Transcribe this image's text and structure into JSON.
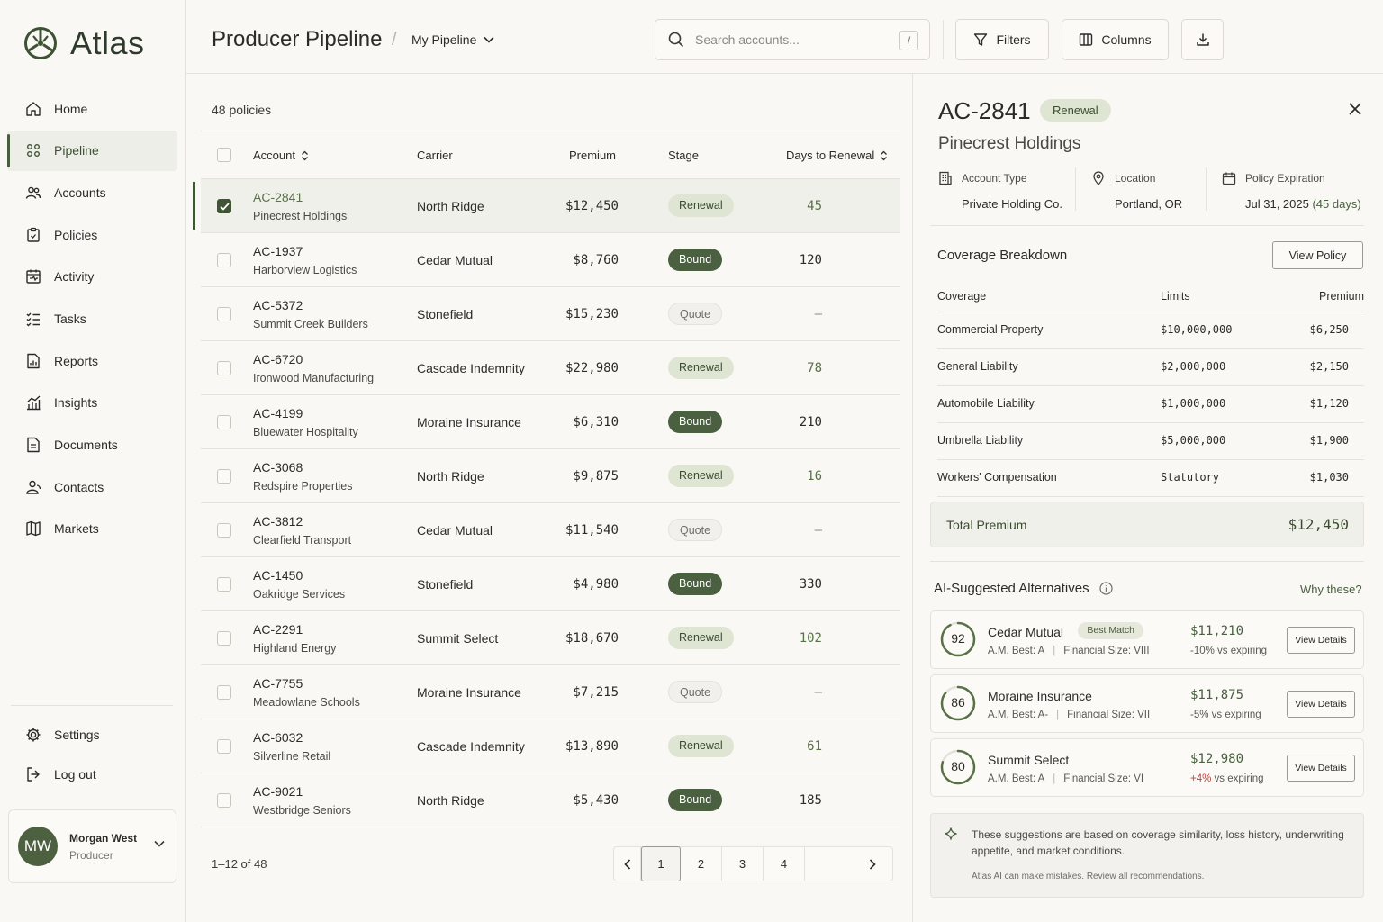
{
  "app": {
    "name": "Atlas"
  },
  "sidebar": {
    "items": [
      {
        "label": "Home",
        "icon": "home-icon"
      },
      {
        "label": "Pipeline",
        "icon": "pipeline-icon",
        "active": true
      },
      {
        "label": "Accounts",
        "icon": "accounts-icon"
      },
      {
        "label": "Policies",
        "icon": "policies-icon"
      },
      {
        "label": "Activity",
        "icon": "activity-icon"
      },
      {
        "label": "Tasks",
        "icon": "tasks-icon"
      },
      {
        "label": "Reports",
        "icon": "reports-icon"
      },
      {
        "label": "Insights",
        "icon": "insights-icon"
      },
      {
        "label": "Documents",
        "icon": "documents-icon"
      },
      {
        "label": "Contacts",
        "icon": "contacts-icon"
      },
      {
        "label": "Markets",
        "icon": "markets-icon"
      }
    ],
    "bottom": [
      {
        "label": "Settings",
        "icon": "gear-icon"
      },
      {
        "label": "Log out",
        "icon": "logout-icon"
      }
    ],
    "user": {
      "initials": "MW",
      "name": "Morgan West",
      "role": "Producer"
    }
  },
  "header": {
    "title": "Producer Pipeline",
    "separator": "/",
    "pipeline": "My Pipeline",
    "search_placeholder": "Search accounts...",
    "search_shortcut": "/",
    "filters": "Filters",
    "columns": "Columns"
  },
  "table": {
    "count": "48 policies",
    "columns": {
      "account": "Account",
      "carrier": "Carrier",
      "premium": "Premium",
      "stage": "Stage",
      "days": "Days to Renewal"
    },
    "rows": [
      {
        "id": "AC-2841",
        "name": "Pinecrest Holdings",
        "carrier": "North Ridge",
        "premium": "$12,450",
        "stage": "Renewal",
        "days": "45",
        "selected": true
      },
      {
        "id": "AC-1937",
        "name": "Harborview Logistics",
        "carrier": "Cedar Mutual",
        "premium": "$8,760",
        "stage": "Bound",
        "days": "120"
      },
      {
        "id": "AC-5372",
        "name": "Summit Creek Builders",
        "carrier": "Stonefield",
        "premium": "$15,230",
        "stage": "Quote",
        "days": "–"
      },
      {
        "id": "AC-6720",
        "name": "Ironwood Manufacturing",
        "carrier": "Cascade Indemnity",
        "premium": "$22,980",
        "stage": "Renewal",
        "days": "78"
      },
      {
        "id": "AC-4199",
        "name": "Bluewater Hospitality",
        "carrier": "Moraine Insurance",
        "premium": "$6,310",
        "stage": "Bound",
        "days": "210"
      },
      {
        "id": "AC-3068",
        "name": "Redspire Properties",
        "carrier": "North Ridge",
        "premium": "$9,875",
        "stage": "Renewal",
        "days": "16"
      },
      {
        "id": "AC-3812",
        "name": "Clearfield Transport",
        "carrier": "Cedar Mutual",
        "premium": "$11,540",
        "stage": "Quote",
        "days": "–"
      },
      {
        "id": "AC-1450",
        "name": "Oakridge Services",
        "carrier": "Stonefield",
        "premium": "$4,980",
        "stage": "Bound",
        "days": "330"
      },
      {
        "id": "AC-2291",
        "name": "Highland Energy",
        "carrier": "Summit Select",
        "premium": "$18,670",
        "stage": "Renewal",
        "days": "102"
      },
      {
        "id": "AC-7755",
        "name": "Meadowlane Schools",
        "carrier": "Moraine Insurance",
        "premium": "$7,215",
        "stage": "Quote",
        "days": "–"
      },
      {
        "id": "AC-6032",
        "name": "Silverline Retail",
        "carrier": "Cascade Indemnity",
        "premium": "$13,890",
        "stage": "Renewal",
        "days": "61"
      },
      {
        "id": "AC-9021",
        "name": "Westbridge Seniors",
        "carrier": "North Ridge",
        "premium": "$5,430",
        "stage": "Bound",
        "days": "185"
      }
    ],
    "pagination": {
      "summary": "1–12 of 48",
      "pages": [
        "1",
        "2",
        "3",
        "4"
      ],
      "current": "1"
    }
  },
  "detail": {
    "id": "AC-2841",
    "badge": "Renewal",
    "name": "Pinecrest Holdings",
    "meta": [
      {
        "label": "Account Type",
        "value": "Private Holding Co.",
        "icon": "building-icon"
      },
      {
        "label": "Location",
        "value": "Portland, OR",
        "icon": "location-pin-icon"
      },
      {
        "label": "Policy Expiration",
        "value": "Jul 31, 2025",
        "extra": "(45 days)",
        "icon": "calendar-icon"
      }
    ],
    "coverage": {
      "title": "Coverage Breakdown",
      "view_policy": "View Policy",
      "headers": {
        "coverage": "Coverage",
        "limits": "Limits",
        "premium": "Premium"
      },
      "rows": [
        {
          "coverage": "Commercial Property",
          "limits": "$10,000,000",
          "premium": "$6,250"
        },
        {
          "coverage": "General Liability",
          "limits": "$2,000,000",
          "premium": "$2,150"
        },
        {
          "coverage": "Automobile Liability",
          "limits": "$1,000,000",
          "premium": "$1,120"
        },
        {
          "coverage": "Umbrella Liability",
          "limits": "$5,000,000",
          "premium": "$1,900"
        },
        {
          "coverage": "Workers' Compensation",
          "limits": "Statutory",
          "premium": "$1,030"
        }
      ],
      "total_label": "Total Premium",
      "total_value": "$12,450"
    },
    "alternatives": {
      "title": "AI-Suggested Alternatives",
      "why": "Why these?",
      "items": [
        {
          "score": "92",
          "score_fraction": 0.92,
          "name": "Cedar Mutual",
          "badge": "Best Match",
          "best": "A.M. Best: A",
          "size": "Financial Size: VIII",
          "price": "$11,210",
          "delta_num": "-10%",
          "delta_rest": " vs expiring",
          "negative": false,
          "button": "View Details"
        },
        {
          "score": "86",
          "score_fraction": 0.86,
          "name": "Moraine Insurance",
          "badge": "",
          "best": "A.M. Best: A-",
          "size": "Financial Size: VII",
          "price": "$11,875",
          "delta_num": "-5%",
          "delta_rest": " vs expiring",
          "negative": false,
          "button": "View Details"
        },
        {
          "score": "80",
          "score_fraction": 0.8,
          "name": "Summit Select",
          "badge": "",
          "best": "A.M. Best: A",
          "size": "Financial Size: VI",
          "price": "$12,980",
          "delta_num": "+4%",
          "delta_rest": " vs expiring",
          "negative": true,
          "button": "View Details"
        }
      ],
      "note": "These suggestions are based on coverage similarity, loss history, underwriting appetite, and market conditions.",
      "disclaimer": "Atlas AI can make mistakes. Review all recommendations."
    }
  },
  "colors": {
    "accent": "#4a6040",
    "renewal_bg": "#dfe5d3",
    "negative": "#c0413a"
  }
}
